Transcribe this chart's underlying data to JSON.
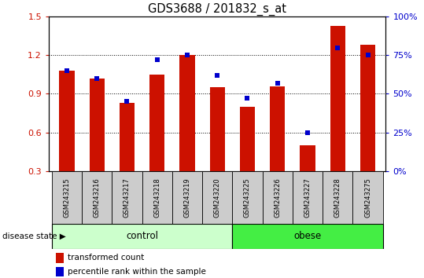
{
  "title": "GDS3688 / 201832_s_at",
  "samples": [
    "GSM243215",
    "GSM243216",
    "GSM243217",
    "GSM243218",
    "GSM243219",
    "GSM243220",
    "GSM243225",
    "GSM243226",
    "GSM243227",
    "GSM243228",
    "GSM243275"
  ],
  "red_values": [
    1.08,
    1.02,
    0.83,
    1.05,
    1.2,
    0.95,
    0.8,
    0.96,
    0.5,
    1.43,
    1.28
  ],
  "blue_percentiles": [
    65,
    60,
    45,
    72,
    75,
    62,
    47,
    57,
    25,
    80,
    75
  ],
  "n_control": 6,
  "n_obese": 5,
  "ylim_left": [
    0.3,
    1.5
  ],
  "ylim_right": [
    0,
    100
  ],
  "yticks_left": [
    0.3,
    0.6,
    0.9,
    1.2,
    1.5
  ],
  "yticks_right": [
    0,
    25,
    50,
    75,
    100
  ],
  "bar_color": "#cc1100",
  "blue_color": "#0000cc",
  "control_bg": "#ccffcc",
  "obese_bg": "#44ee44",
  "label_bg": "#cccccc",
  "bar_width": 0.5,
  "legend_red": "transformed count",
  "legend_blue": "percentile rank within the sample",
  "disease_label": "disease state",
  "control_label": "control",
  "obese_label": "obese"
}
